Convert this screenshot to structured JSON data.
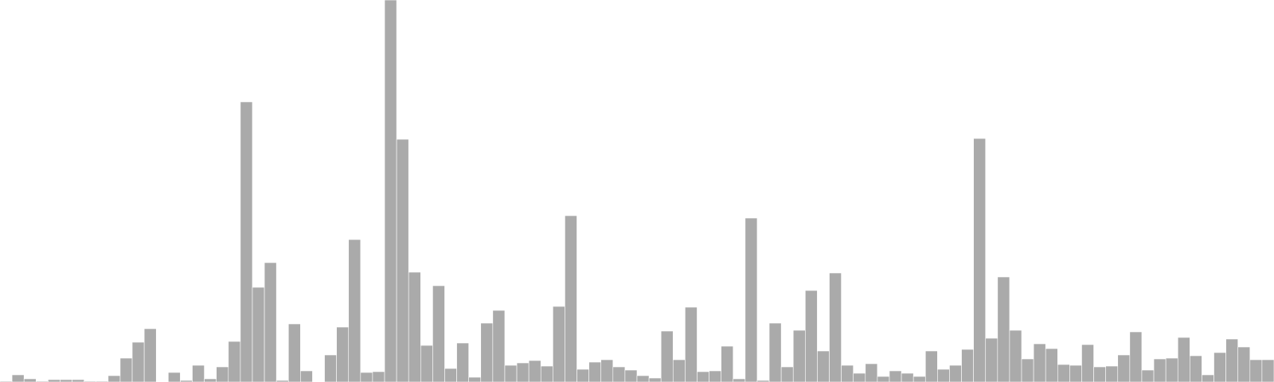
{
  "chart_data": {
    "type": "bar",
    "title": "",
    "xlabel": "",
    "ylabel": "",
    "ylim": [
      0,
      480
    ],
    "grid": false,
    "legend": "none",
    "bar_color": "#aaaaaa",
    "bar_edge_color": "#ffffff",
    "values": [
      1,
      9,
      4,
      1,
      3,
      3,
      3,
      1,
      1,
      8,
      30,
      50,
      67,
      0,
      12,
      2,
      21,
      4,
      19,
      51,
      352,
      119,
      150,
      2,
      73,
      14,
      0,
      34,
      69,
      179,
      12,
      13,
      480,
      305,
      138,
      46,
      121,
      17,
      49,
      6,
      74,
      90,
      21,
      24,
      27,
      20,
      95,
      209,
      16,
      25,
      28,
      19,
      15,
      8,
      5,
      64,
      28,
      94,
      13,
      14,
      45,
      4,
      206,
      2,
      74,
      19,
      65,
      115,
      39,
      137,
      21,
      11,
      23,
      7,
      14,
      11,
      7,
      39,
      16,
      21,
      41,
      306,
      55,
      132,
      65,
      29,
      48,
      42,
      22,
      21,
      47,
      19,
      20,
      34,
      63,
      15,
      29,
      30,
      56,
      33,
      9,
      37,
      54,
      44,
      28,
      28
    ]
  }
}
